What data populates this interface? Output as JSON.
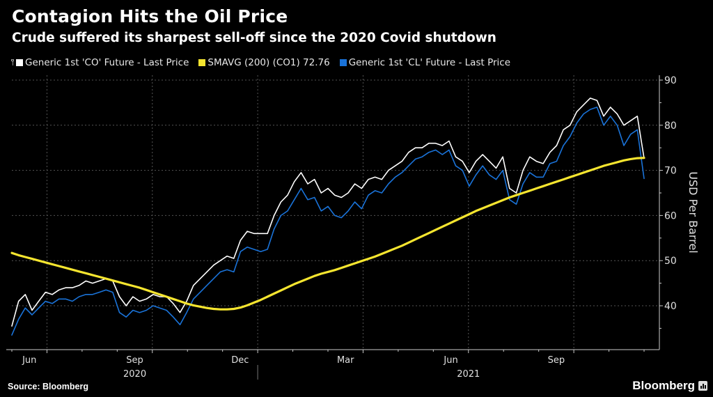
{
  "header": {
    "title": "Contagion Hits the Oil Price",
    "subtitle": "Crude suffered its sharpest sell-off since the 2020 Covid shutdown"
  },
  "legend": [
    {
      "label": "Generic 1st 'CO' Future - Last Price",
      "color": "#ffffff"
    },
    {
      "label": "SMAVG (200) (CO1) 72.76",
      "color": "#f5e52f"
    },
    {
      "label": "Generic 1st 'CL' Future - Last Price",
      "color": "#1a73d9"
    }
  ],
  "footer": {
    "source": "Source: Bloomberg",
    "brand": "Bloomberg"
  },
  "chart_data": {
    "type": "line",
    "title": "Contagion Hits the Oil Price",
    "subtitle": "Crude suffered its sharpest sell-off since the 2020 Covid shutdown",
    "xlabel": "",
    "ylabel": "USD Per Barrel",
    "y_axis_position": "right",
    "ylim": [
      33,
      91
    ],
    "yticks": [
      40,
      50,
      60,
      70,
      80,
      90
    ],
    "grid": true,
    "legend_position": "top-left",
    "x_range": [
      "2020-06-01",
      "2021-11-30"
    ],
    "x_month_labels": [
      {
        "label": "Jun",
        "month_index": 0
      },
      {
        "label": "Sep",
        "month_index": 3
      },
      {
        "label": "Dec",
        "month_index": 6
      },
      {
        "label": "Mar",
        "month_index": 9
      },
      {
        "label": "Jun",
        "month_index": 12
      },
      {
        "label": "Sep",
        "month_index": 15
      }
    ],
    "x_year_labels": [
      {
        "label": "2020",
        "month_index": 3
      },
      {
        "label": "2021",
        "month_index": 12.5
      }
    ],
    "x_months_span": 18,
    "series": [
      {
        "name": "Generic 1st 'CO' Future - Last Price",
        "color": "#ffffff",
        "values": [
          35.5,
          41.0,
          42.5,
          39.0,
          41.0,
          43.0,
          42.5,
          43.5,
          44.0,
          44.0,
          44.5,
          45.5,
          45.0,
          45.5,
          46.0,
          45.5,
          42.0,
          40.0,
          42.0,
          41.0,
          41.5,
          42.5,
          42.0,
          42.0,
          40.5,
          38.5,
          41.0,
          44.5,
          46.0,
          47.5,
          49.0,
          50.0,
          51.0,
          50.5,
          54.5,
          56.5,
          56.0,
          56.0,
          56.0,
          60.0,
          63.0,
          64.5,
          67.5,
          69.5,
          67.0,
          68.0,
          65.0,
          66.0,
          64.5,
          64.0,
          65.0,
          67.0,
          66.0,
          68.0,
          68.5,
          68.0,
          70.0,
          71.0,
          72.0,
          74.0,
          75.0,
          75.0,
          76.0,
          76.0,
          75.5,
          76.5,
          73.0,
          72.0,
          69.5,
          72.0,
          73.5,
          72.0,
          70.5,
          73.0,
          66.0,
          65.0,
          70.0,
          73.0,
          72.0,
          71.5,
          74.0,
          75.5,
          79.0,
          80.0,
          83.0,
          84.5,
          86.0,
          85.5,
          82.0,
          84.0,
          82.5,
          80.0,
          81.0,
          82.0,
          72.7
        ]
      },
      {
        "name": "SMAVG (200) (CO1) 72.76",
        "color": "#f5e52f",
        "values": [
          51.7,
          51.2,
          50.8,
          50.4,
          50.0,
          49.6,
          49.2,
          48.8,
          48.4,
          48.0,
          47.6,
          47.2,
          46.8,
          46.4,
          46.0,
          45.6,
          45.2,
          44.8,
          44.4,
          44.0,
          43.5,
          43.0,
          42.5,
          42.0,
          41.5,
          41.0,
          40.5,
          40.1,
          39.8,
          39.5,
          39.3,
          39.2,
          39.2,
          39.3,
          39.6,
          40.1,
          40.7,
          41.3,
          42.0,
          42.7,
          43.4,
          44.1,
          44.8,
          45.4,
          46.0,
          46.6,
          47.1,
          47.5,
          47.9,
          48.4,
          48.9,
          49.4,
          49.9,
          50.4,
          50.9,
          51.5,
          52.1,
          52.7,
          53.3,
          54.0,
          54.7,
          55.4,
          56.1,
          56.8,
          57.5,
          58.2,
          58.9,
          59.6,
          60.3,
          61.0,
          61.6,
          62.2,
          62.8,
          63.4,
          64.0,
          64.5,
          65.0,
          65.5,
          66.0,
          66.5,
          67.0,
          67.5,
          68.0,
          68.5,
          69.0,
          69.5,
          70.0,
          70.5,
          71.0,
          71.4,
          71.8,
          72.2,
          72.5,
          72.7,
          72.76
        ]
      },
      {
        "name": "Generic 1st 'CL' Future - Last Price",
        "color": "#1a73d9",
        "values": [
          33.5,
          37.0,
          39.5,
          38.0,
          39.5,
          41.0,
          40.5,
          41.5,
          41.5,
          41.0,
          42.0,
          42.5,
          42.5,
          43.0,
          43.5,
          43.0,
          38.5,
          37.5,
          39.0,
          38.5,
          39.0,
          40.0,
          39.5,
          39.0,
          37.5,
          35.8,
          38.5,
          41.5,
          43.0,
          44.5,
          46.0,
          47.5,
          48.0,
          47.5,
          52.0,
          53.0,
          52.5,
          52.0,
          52.5,
          57.0,
          60.0,
          61.0,
          63.5,
          66.0,
          63.5,
          64.0,
          61.0,
          62.0,
          60.0,
          59.5,
          61.0,
          63.0,
          61.5,
          64.5,
          65.5,
          65.0,
          67.0,
          68.5,
          69.5,
          71.0,
          72.5,
          73.0,
          74.0,
          74.5,
          73.5,
          74.5,
          71.0,
          70.0,
          66.5,
          69.0,
          71.0,
          69.0,
          68.0,
          70.0,
          63.5,
          62.5,
          67.0,
          69.5,
          68.5,
          68.5,
          71.5,
          72.0,
          75.5,
          77.5,
          80.5,
          82.5,
          83.5,
          84.0,
          80.0,
          82.0,
          80.0,
          75.5,
          78.0,
          79.0,
          68.2
        ]
      }
    ]
  }
}
